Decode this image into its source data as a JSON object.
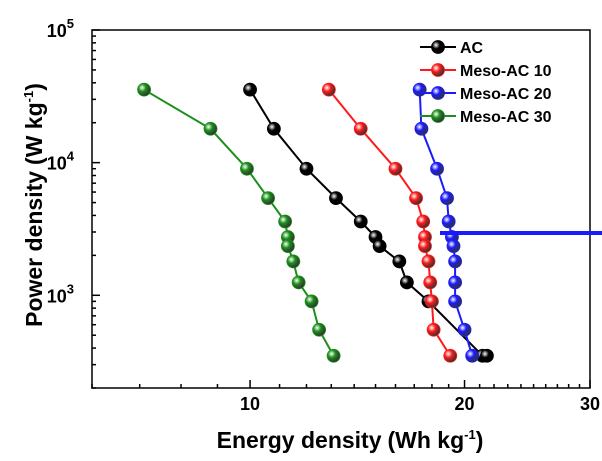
{
  "chart_data": {
    "type": "line",
    "xlabel": "Energy density",
    "xunit_base": "(Wh kg",
    "xunit_exp": "-1",
    "xunit_close": ")",
    "ylabel": "Power density",
    "yunit_base": "(W kg",
    "yunit_exp": "-1",
    "yunit_close": ")",
    "x_scale": "log",
    "y_scale": "log",
    "xlim": [
      6,
      30
    ],
    "ylim": [
      200,
      100000
    ],
    "x_ticks": [
      10,
      20,
      30
    ],
    "x_tick_labels": [
      "10",
      "20",
      "30"
    ],
    "y_ticks": [
      1000,
      10000,
      100000
    ],
    "y_tick_labels": [
      {
        "base": "10",
        "exp": "3"
      },
      {
        "base": "10",
        "exp": "4"
      },
      {
        "base": "10",
        "exp": "5"
      }
    ],
    "legend_position": "top-right",
    "grid": false,
    "series": [
      {
        "name": "AC",
        "color": "#000000",
        "points": [
          [
            10.0,
            35500
          ],
          [
            10.8,
            18000
          ],
          [
            12.0,
            9000
          ],
          [
            13.2,
            5400
          ],
          [
            14.3,
            3600
          ],
          [
            15.0,
            2750
          ],
          [
            15.2,
            2350
          ],
          [
            16.2,
            1800
          ],
          [
            16.6,
            1250
          ],
          [
            17.8,
            900
          ],
          [
            21.2,
            350
          ],
          [
            21.5,
            350
          ]
        ]
      },
      {
        "name": "Meso-AC 10",
        "color": "#ff1a1a",
        "points": [
          [
            12.9,
            35500
          ],
          [
            14.3,
            18000
          ],
          [
            16.0,
            9000
          ],
          [
            17.1,
            5400
          ],
          [
            17.5,
            3600
          ],
          [
            17.6,
            2750
          ],
          [
            17.6,
            2350
          ],
          [
            17.8,
            1800
          ],
          [
            17.9,
            1250
          ],
          [
            18.0,
            900
          ],
          [
            18.1,
            550
          ],
          [
            19.1,
            350
          ]
        ]
      },
      {
        "name": "Meso-AC 20",
        "color": "#1a1aff",
        "points": [
          [
            17.3,
            35500
          ],
          [
            17.4,
            18000
          ],
          [
            18.3,
            9000
          ],
          [
            18.9,
            5400
          ],
          [
            19.0,
            3600
          ],
          [
            19.2,
            2750
          ],
          [
            19.3,
            2350
          ],
          [
            19.4,
            1800
          ],
          [
            19.4,
            1250
          ],
          [
            19.4,
            900
          ],
          [
            20.0,
            550
          ],
          [
            20.5,
            350
          ]
        ]
      },
      {
        "name": "Meso-AC 30",
        "color": "#1a8f1a",
        "points": [
          [
            7.1,
            35500
          ],
          [
            8.8,
            18000
          ],
          [
            9.9,
            9000
          ],
          [
            10.6,
            5400
          ],
          [
            11.2,
            3600
          ],
          [
            11.3,
            2750
          ],
          [
            11.3,
            2350
          ],
          [
            11.5,
            1800
          ],
          [
            11.7,
            1250
          ],
          [
            12.2,
            900
          ],
          [
            12.5,
            550
          ],
          [
            13.1,
            350
          ]
        ]
      }
    ]
  }
}
